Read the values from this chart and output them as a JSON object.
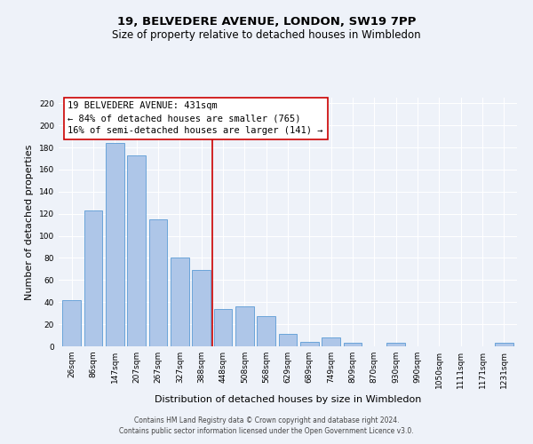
{
  "title": "19, BELVEDERE AVENUE, LONDON, SW19 7PP",
  "subtitle": "Size of property relative to detached houses in Wimbledon",
  "xlabel": "Distribution of detached houses by size in Wimbledon",
  "ylabel": "Number of detached properties",
  "categories": [
    "26sqm",
    "86sqm",
    "147sqm",
    "207sqm",
    "267sqm",
    "327sqm",
    "388sqm",
    "448sqm",
    "508sqm",
    "568sqm",
    "629sqm",
    "689sqm",
    "749sqm",
    "809sqm",
    "870sqm",
    "930sqm",
    "990sqm",
    "1050sqm",
    "1111sqm",
    "1171sqm",
    "1231sqm"
  ],
  "values": [
    42,
    123,
    184,
    173,
    115,
    80,
    69,
    34,
    36,
    27,
    11,
    4,
    8,
    3,
    0,
    3,
    0,
    0,
    0,
    0,
    3
  ],
  "bar_color": "#aec6e8",
  "bar_edge_color": "#5b9bd5",
  "bar_edge_width": 0.6,
  "vline_color": "#cc0000",
  "annotation_title": "19 BELVEDERE AVENUE: 431sqm",
  "annotation_line1": "← 84% of detached houses are smaller (765)",
  "annotation_line2": "16% of semi-detached houses are larger (141) →",
  "annotation_box_color": "#ffffff",
  "annotation_box_edge": "#cc0000",
  "ylim": [
    0,
    225
  ],
  "yticks": [
    0,
    20,
    40,
    60,
    80,
    100,
    120,
    140,
    160,
    180,
    200,
    220
  ],
  "footnote1": "Contains HM Land Registry data © Crown copyright and database right 2024.",
  "footnote2": "Contains public sector information licensed under the Open Government Licence v3.0.",
  "bg_color": "#eef2f9",
  "plot_bg_color": "#eef2f9",
  "grid_color": "#ffffff",
  "title_fontsize": 9.5,
  "subtitle_fontsize": 8.5,
  "tick_fontsize": 6.5,
  "label_fontsize": 8,
  "annotation_fontsize": 7.5,
  "footnote_fontsize": 5.5
}
